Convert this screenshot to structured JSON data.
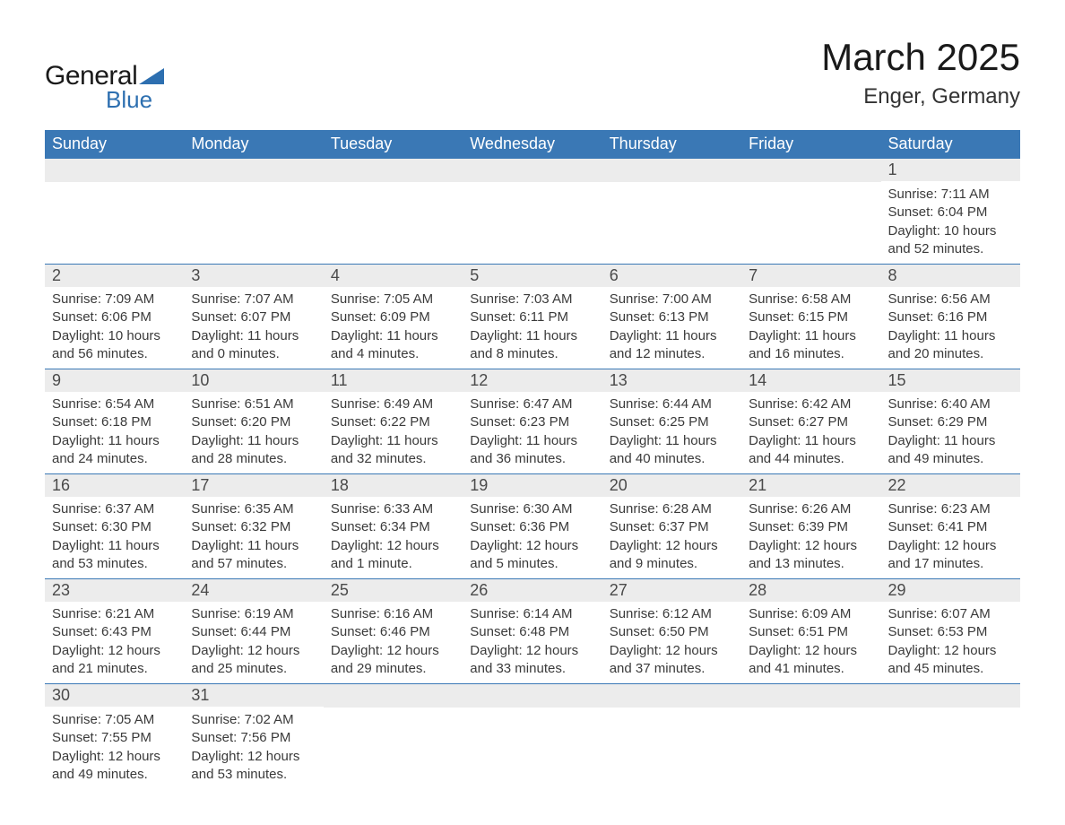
{
  "logo": {
    "text1": "General",
    "text2": "Blue",
    "triangle_color": "#2d6fb0"
  },
  "title": "March 2025",
  "location": "Enger, Germany",
  "colors": {
    "header_bg": "#3a78b5",
    "header_text": "#ffffff",
    "daynum_bg": "#ececec",
    "row_border": "#3a78b5",
    "body_text": "#3a3a3a"
  },
  "typography": {
    "title_fontsize": 42,
    "location_fontsize": 24,
    "weekday_fontsize": 18,
    "daynum_fontsize": 18,
    "body_fontsize": 15
  },
  "weekdays": [
    "Sunday",
    "Monday",
    "Tuesday",
    "Wednesday",
    "Thursday",
    "Friday",
    "Saturday"
  ],
  "weeks": [
    [
      null,
      null,
      null,
      null,
      null,
      null,
      {
        "n": "1",
        "sunrise": "7:11 AM",
        "sunset": "6:04 PM",
        "daylight": "10 hours and 52 minutes."
      }
    ],
    [
      {
        "n": "2",
        "sunrise": "7:09 AM",
        "sunset": "6:06 PM",
        "daylight": "10 hours and 56 minutes."
      },
      {
        "n": "3",
        "sunrise": "7:07 AM",
        "sunset": "6:07 PM",
        "daylight": "11 hours and 0 minutes."
      },
      {
        "n": "4",
        "sunrise": "7:05 AM",
        "sunset": "6:09 PM",
        "daylight": "11 hours and 4 minutes."
      },
      {
        "n": "5",
        "sunrise": "7:03 AM",
        "sunset": "6:11 PM",
        "daylight": "11 hours and 8 minutes."
      },
      {
        "n": "6",
        "sunrise": "7:00 AM",
        "sunset": "6:13 PM",
        "daylight": "11 hours and 12 minutes."
      },
      {
        "n": "7",
        "sunrise": "6:58 AM",
        "sunset": "6:15 PM",
        "daylight": "11 hours and 16 minutes."
      },
      {
        "n": "8",
        "sunrise": "6:56 AM",
        "sunset": "6:16 PM",
        "daylight": "11 hours and 20 minutes."
      }
    ],
    [
      {
        "n": "9",
        "sunrise": "6:54 AM",
        "sunset": "6:18 PM",
        "daylight": "11 hours and 24 minutes."
      },
      {
        "n": "10",
        "sunrise": "6:51 AM",
        "sunset": "6:20 PM",
        "daylight": "11 hours and 28 minutes."
      },
      {
        "n": "11",
        "sunrise": "6:49 AM",
        "sunset": "6:22 PM",
        "daylight": "11 hours and 32 minutes."
      },
      {
        "n": "12",
        "sunrise": "6:47 AM",
        "sunset": "6:23 PM",
        "daylight": "11 hours and 36 minutes."
      },
      {
        "n": "13",
        "sunrise": "6:44 AM",
        "sunset": "6:25 PM",
        "daylight": "11 hours and 40 minutes."
      },
      {
        "n": "14",
        "sunrise": "6:42 AM",
        "sunset": "6:27 PM",
        "daylight": "11 hours and 44 minutes."
      },
      {
        "n": "15",
        "sunrise": "6:40 AM",
        "sunset": "6:29 PM",
        "daylight": "11 hours and 49 minutes."
      }
    ],
    [
      {
        "n": "16",
        "sunrise": "6:37 AM",
        "sunset": "6:30 PM",
        "daylight": "11 hours and 53 minutes."
      },
      {
        "n": "17",
        "sunrise": "6:35 AM",
        "sunset": "6:32 PM",
        "daylight": "11 hours and 57 minutes."
      },
      {
        "n": "18",
        "sunrise": "6:33 AM",
        "sunset": "6:34 PM",
        "daylight": "12 hours and 1 minute."
      },
      {
        "n": "19",
        "sunrise": "6:30 AM",
        "sunset": "6:36 PM",
        "daylight": "12 hours and 5 minutes."
      },
      {
        "n": "20",
        "sunrise": "6:28 AM",
        "sunset": "6:37 PM",
        "daylight": "12 hours and 9 minutes."
      },
      {
        "n": "21",
        "sunrise": "6:26 AM",
        "sunset": "6:39 PM",
        "daylight": "12 hours and 13 minutes."
      },
      {
        "n": "22",
        "sunrise": "6:23 AM",
        "sunset": "6:41 PM",
        "daylight": "12 hours and 17 minutes."
      }
    ],
    [
      {
        "n": "23",
        "sunrise": "6:21 AM",
        "sunset": "6:43 PM",
        "daylight": "12 hours and 21 minutes."
      },
      {
        "n": "24",
        "sunrise": "6:19 AM",
        "sunset": "6:44 PM",
        "daylight": "12 hours and 25 minutes."
      },
      {
        "n": "25",
        "sunrise": "6:16 AM",
        "sunset": "6:46 PM",
        "daylight": "12 hours and 29 minutes."
      },
      {
        "n": "26",
        "sunrise": "6:14 AM",
        "sunset": "6:48 PM",
        "daylight": "12 hours and 33 minutes."
      },
      {
        "n": "27",
        "sunrise": "6:12 AM",
        "sunset": "6:50 PM",
        "daylight": "12 hours and 37 minutes."
      },
      {
        "n": "28",
        "sunrise": "6:09 AM",
        "sunset": "6:51 PM",
        "daylight": "12 hours and 41 minutes."
      },
      {
        "n": "29",
        "sunrise": "6:07 AM",
        "sunset": "6:53 PM",
        "daylight": "12 hours and 45 minutes."
      }
    ],
    [
      {
        "n": "30",
        "sunrise": "7:05 AM",
        "sunset": "7:55 PM",
        "daylight": "12 hours and 49 minutes."
      },
      {
        "n": "31",
        "sunrise": "7:02 AM",
        "sunset": "7:56 PM",
        "daylight": "12 hours and 53 minutes."
      },
      null,
      null,
      null,
      null,
      null
    ]
  ],
  "labels": {
    "sunrise": "Sunrise:",
    "sunset": "Sunset:",
    "daylight": "Daylight:"
  }
}
